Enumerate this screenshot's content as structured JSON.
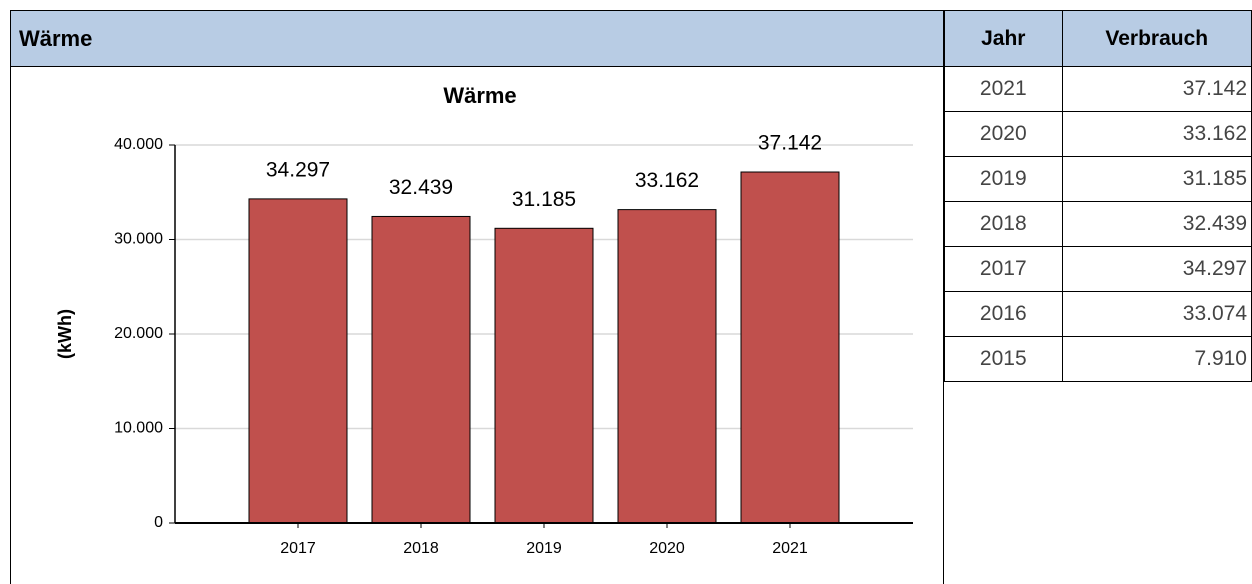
{
  "header": {
    "title": "Wärme"
  },
  "chart_data": {
    "type": "bar",
    "title": "Wärme",
    "y_label": "(kWh)",
    "categories": [
      "2017",
      "2018",
      "2019",
      "2020",
      "2021"
    ],
    "values": [
      34297,
      32439,
      31185,
      33162,
      37142
    ],
    "value_labels": [
      "34.297",
      "32.439",
      "31.185",
      "33.162",
      "37.142"
    ],
    "color": "#c0504d",
    "ylim": [
      0,
      40000
    ],
    "yticks": [
      0,
      {
        "value": 10000,
        "label": "10.000"
      },
      {
        "value": 20000,
        "label": "20.000"
      },
      {
        "value": 30000,
        "label": "30.000"
      },
      {
        "value": 40000,
        "label": "40.000"
      }
    ],
    "grid": true
  },
  "table": {
    "columns": [
      "Jahr",
      "Verbrauch"
    ],
    "rows": [
      [
        "2021",
        "37.142"
      ],
      [
        "2020",
        "33.162"
      ],
      [
        "2019",
        "31.185"
      ],
      [
        "2018",
        "32.439"
      ],
      [
        "2017",
        "34.297"
      ],
      [
        "2016",
        "33.074"
      ],
      [
        "2015",
        "7.910"
      ]
    ]
  }
}
